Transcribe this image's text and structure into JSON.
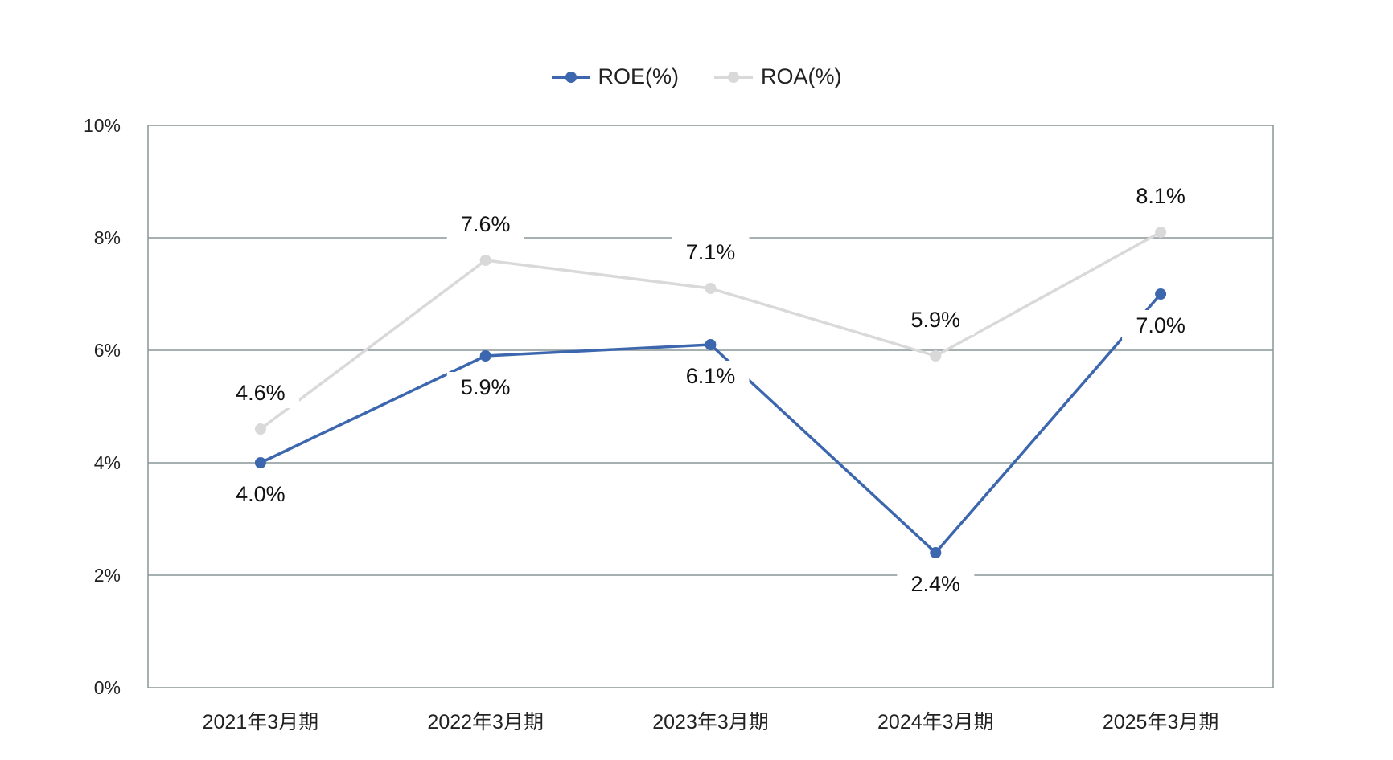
{
  "chart_data": {
    "type": "line",
    "categories": [
      "2021年3月期",
      "2022年3月期",
      "2023年3月期",
      "2024年3月期",
      "2025年3月期"
    ],
    "series": [
      {
        "name": "ROE(%)",
        "color": "#3c67ae",
        "values": [
          4.0,
          5.9,
          6.1,
          2.4,
          7.0
        ],
        "labels": [
          "4.0%",
          "5.9%",
          "6.1%",
          "2.4%",
          "7.0%"
        ]
      },
      {
        "name": "ROA(%)",
        "color": "#d9d9d9",
        "values": [
          4.6,
          7.6,
          7.1,
          5.9,
          8.1
        ],
        "labels": [
          "4.6%",
          "7.6%",
          "7.1%",
          "5.9%",
          "8.1%"
        ]
      }
    ],
    "yticks": [
      "0%",
      "2%",
      "4%",
      "6%",
      "8%",
      "10%"
    ],
    "ylim": [
      0,
      10
    ],
    "legend": "top-center",
    "grid": true
  }
}
